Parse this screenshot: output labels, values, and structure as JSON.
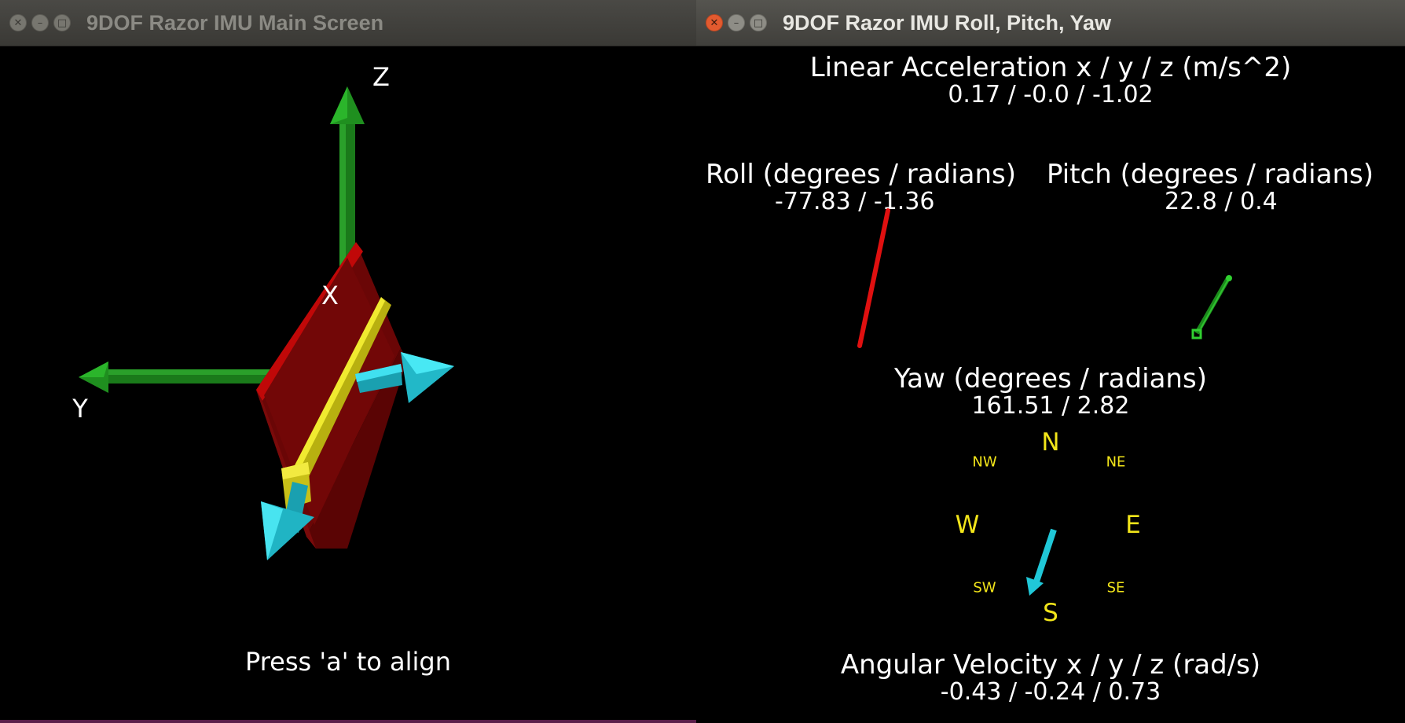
{
  "main_window": {
    "title": "9DOF Razor IMU Main Screen",
    "axis_labels": {
      "x": "X",
      "y": "Y",
      "z": "Z"
    },
    "hint": "Press 'a' to align"
  },
  "rpy_window": {
    "title": "9DOF Razor IMU Roll, Pitch, Yaw",
    "linear_accel": {
      "label": "Linear Acceleration x / y / z (m/s^2)",
      "value": "0.17 / -0.0 / -1.02"
    },
    "roll": {
      "label": "Roll (degrees / radians)",
      "value": "-77.83 / -1.36"
    },
    "pitch": {
      "label": "Pitch (degrees / radians)",
      "value": "22.8 / 0.4"
    },
    "yaw": {
      "label": "Yaw (degrees / radians)",
      "value": "161.51 / 2.82"
    },
    "compass": {
      "n": "N",
      "ne": "NE",
      "e": "E",
      "se": "SE",
      "s": "S",
      "sw": "SW",
      "w": "W",
      "nw": "NW"
    },
    "angular_velocity": {
      "label": "Angular Velocity x / y / z (rad/s)",
      "value": "-0.43 / -0.24 / 0.73"
    }
  },
  "icons": {
    "window_close": "close-icon",
    "window_minimize": "minimize-icon",
    "window_maximize": "maximize-icon"
  },
  "colors": {
    "roll_indicator": "#e01010",
    "pitch_indicator": "#1c9a1c",
    "yaw_indicator": "#20c8d8",
    "compass_text": "#f2e51a",
    "axis_green": "#1a8a1a",
    "board_red": "#8a0a0a",
    "board_yellow": "#e8e020",
    "arrow_cyan": "#30d0e0"
  }
}
